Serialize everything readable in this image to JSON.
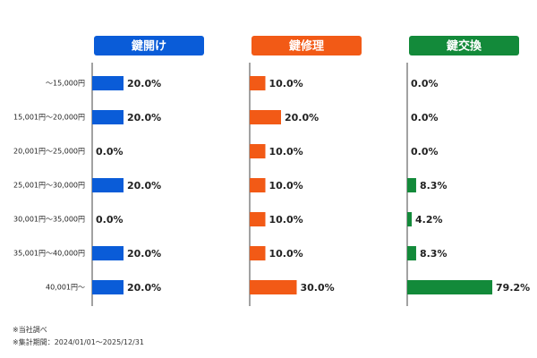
{
  "chart_data": {
    "type": "bar",
    "categories": [
      "～15,000円",
      "15,001円～20,000円",
      "20,001円～25,000円",
      "25,001円～30,000円",
      "30,001円～35,000円",
      "35,001円～40,000円",
      "40,001円～"
    ],
    "series": [
      {
        "name": "鍵開け",
        "color": "#0a5cd8",
        "values": [
          20.0,
          20.0,
          0.0,
          20.0,
          0.0,
          20.0,
          20.0
        ]
      },
      {
        "name": "鍵修理",
        "color": "#f25a16",
        "values": [
          10.0,
          20.0,
          10.0,
          10.0,
          10.0,
          10.0,
          30.0
        ]
      },
      {
        "name": "鍵交換",
        "color": "#138a3a",
        "values": [
          0.0,
          0.0,
          0.0,
          8.3,
          4.2,
          8.3,
          79.2
        ]
      }
    ],
    "value_format": "percent, 1 decimal",
    "title": "",
    "xlabel": "",
    "ylabel": ""
  },
  "footnotes": [
    "※当社調べ",
    "※集計期間：2024/01/01～2025/12/31"
  ]
}
